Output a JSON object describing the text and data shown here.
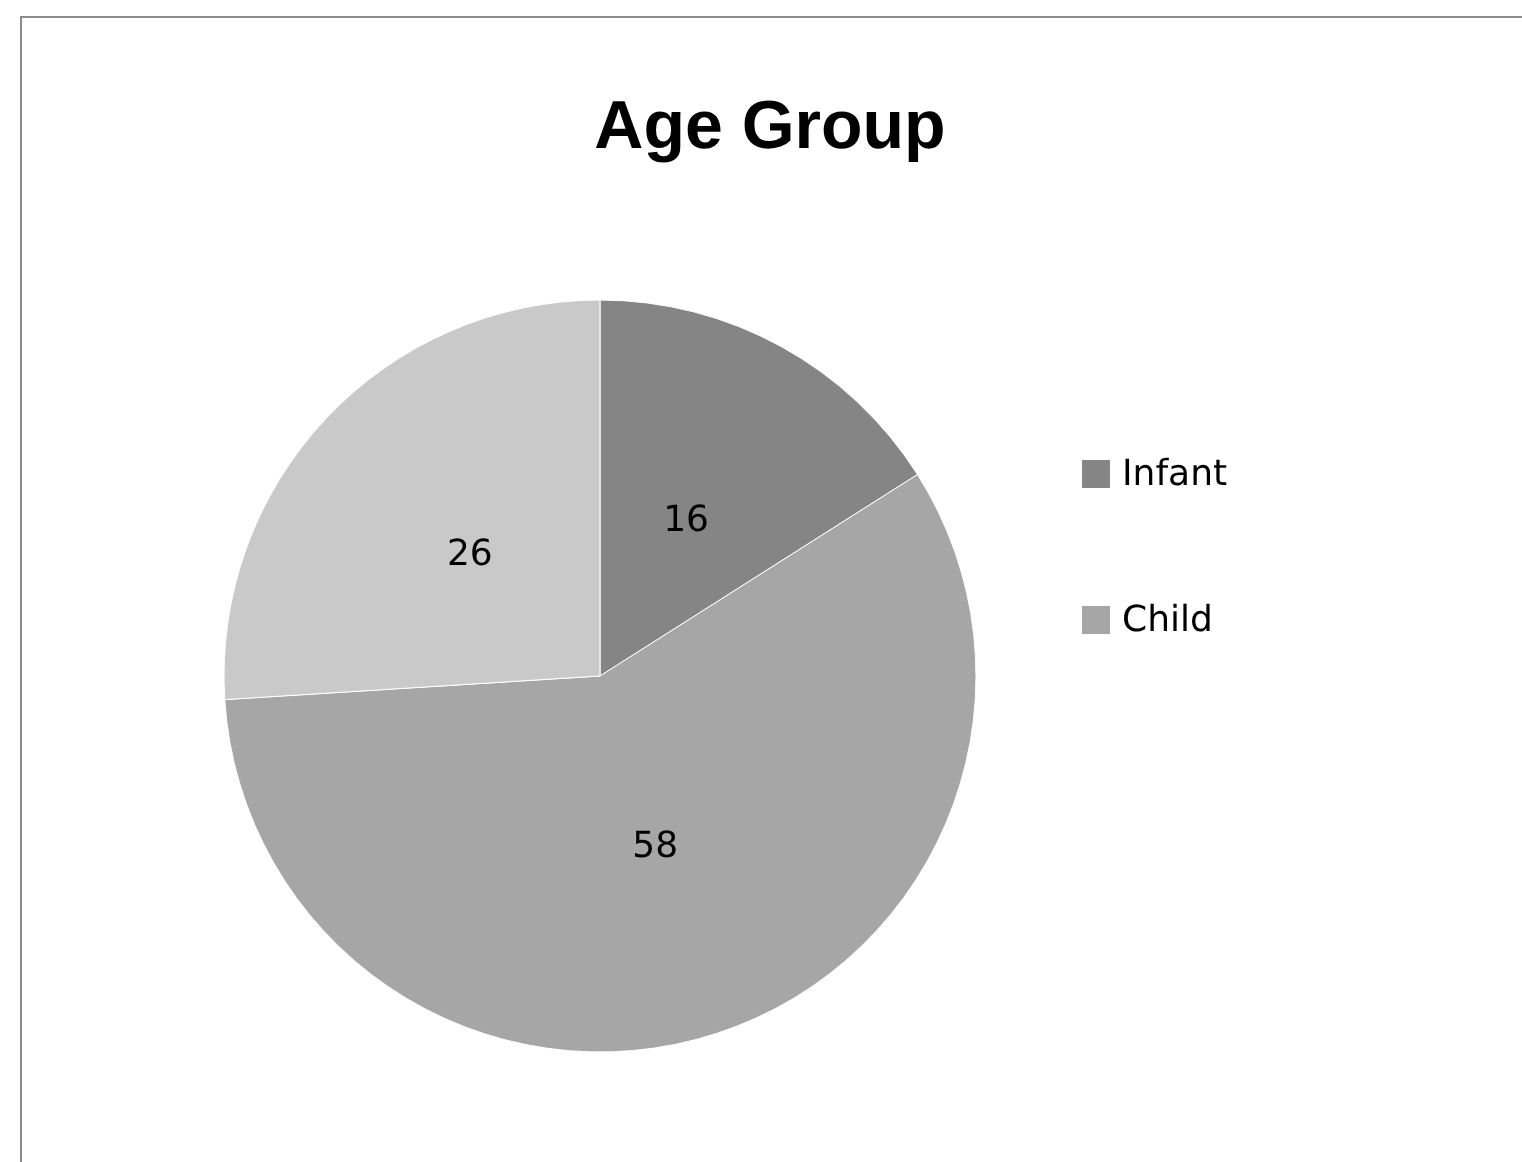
{
  "chart_data": {
    "type": "pie",
    "title": "Age Group",
    "categories": [
      "Infant",
      "Child",
      null
    ],
    "values": [
      16,
      58,
      26
    ],
    "colors": [
      "#858585",
      "#a6a6a6",
      "#c9c9c9"
    ],
    "data_labels": true,
    "legend": "right"
  }
}
